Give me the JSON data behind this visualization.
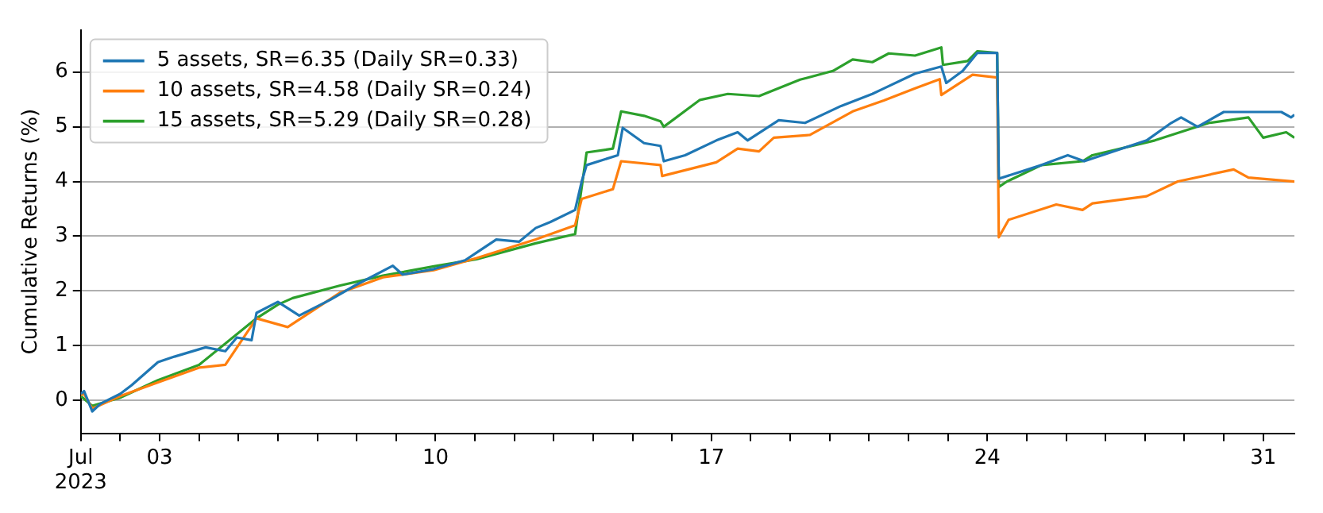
{
  "chart_data": {
    "type": "line",
    "ylabel": "Cumulative Returns (%)",
    "xlim": [
      "2023-07-01",
      "2023-07-31T19:00"
    ],
    "ylim": [
      -0.6,
      6.77
    ],
    "yticks": [
      0,
      1,
      2,
      3,
      4,
      5,
      6
    ],
    "xticks": [
      {
        "value": "2023-07-01",
        "label": "Jul\n2023"
      },
      {
        "value": "2023-07-02",
        "label": null
      },
      {
        "value": "2023-07-03",
        "label": "03"
      },
      {
        "value": "2023-07-04",
        "label": null
      },
      {
        "value": "2023-07-05",
        "label": null
      },
      {
        "value": "2023-07-06",
        "label": null
      },
      {
        "value": "2023-07-07",
        "label": null
      },
      {
        "value": "2023-07-08",
        "label": null
      },
      {
        "value": "2023-07-09",
        "label": null
      },
      {
        "value": "2023-07-10",
        "label": "10"
      },
      {
        "value": "2023-07-11",
        "label": null
      },
      {
        "value": "2023-07-12",
        "label": null
      },
      {
        "value": "2023-07-13",
        "label": null
      },
      {
        "value": "2023-07-14",
        "label": null
      },
      {
        "value": "2023-07-15",
        "label": null
      },
      {
        "value": "2023-07-16",
        "label": null
      },
      {
        "value": "2023-07-17",
        "label": "17"
      },
      {
        "value": "2023-07-18",
        "label": null
      },
      {
        "value": "2023-07-19",
        "label": null
      },
      {
        "value": "2023-07-20",
        "label": null
      },
      {
        "value": "2023-07-21",
        "label": null
      },
      {
        "value": "2023-07-22",
        "label": null
      },
      {
        "value": "2023-07-23",
        "label": null
      },
      {
        "value": "2023-07-24",
        "label": "24"
      },
      {
        "value": "2023-07-25",
        "label": null
      },
      {
        "value": "2023-07-26",
        "label": null
      },
      {
        "value": "2023-07-27",
        "label": null
      },
      {
        "value": "2023-07-28",
        "label": null
      },
      {
        "value": "2023-07-29",
        "label": null
      },
      {
        "value": "2023-07-30",
        "label": null
      },
      {
        "value": "2023-07-31",
        "label": "31"
      }
    ],
    "grid": "y",
    "legend": "top left",
    "marker": "none",
    "line_style": "solid",
    "series": [
      {
        "name": "5 assets, SR=6.35 (Daily SR=0.33)",
        "color": "#1f77b4",
        "x": [
          "2023-07-01T00:00",
          "2023-07-01T02:00",
          "2023-07-01T07:00",
          "2023-07-01T12:00",
          "2023-07-02T00:00",
          "2023-07-02T07:00",
          "2023-07-02T23:00",
          "2023-07-03T09:00",
          "2023-07-04T04:00",
          "2023-07-04T16:00",
          "2023-07-04T23:00",
          "2023-07-05T08:00",
          "2023-07-05T11:00",
          "2023-07-06T00:00",
          "2023-07-06T13:00",
          "2023-07-07T08:00",
          "2023-07-07T23:00",
          "2023-07-08T22:00",
          "2023-07-09T04:00",
          "2023-07-09T23:00",
          "2023-07-10T18:00",
          "2023-07-11T01:00",
          "2023-07-11T13:00",
          "2023-07-12T03:00",
          "2023-07-12T13:00",
          "2023-07-12T22:00",
          "2023-07-13T13:00",
          "2023-07-13T17:00",
          "2023-07-13T20:00",
          "2023-07-14T15:00",
          "2023-07-14T18:00",
          "2023-07-15T07:00",
          "2023-07-15T17:00",
          "2023-07-15T19:00",
          "2023-07-16T08:00",
          "2023-07-17T03:00",
          "2023-07-17T16:00",
          "2023-07-17T22:00",
          "2023-07-18T17:00",
          "2023-07-19T09:00",
          "2023-07-20T07:00",
          "2023-07-21T02:00",
          "2023-07-21T09:00",
          "2023-07-22T04:00",
          "2023-07-22T20:00",
          "2023-07-22T23:00",
          "2023-07-23T09:00",
          "2023-07-23T18:00",
          "2023-07-24T06:00",
          "2023-07-24T07:00",
          "2023-07-25T09:00",
          "2023-07-26T01:00",
          "2023-07-26T11:00",
          "2023-07-28T01:00",
          "2023-07-28T16:00",
          "2023-07-28T22:00",
          "2023-07-29T08:00",
          "2023-07-30T00:00",
          "2023-07-31T11:00",
          "2023-07-31T17:00",
          "2023-07-31T19:00"
        ],
        "values": [
          0.12,
          0.17,
          -0.2,
          -0.06,
          0.12,
          0.28,
          0.7,
          0.8,
          0.97,
          0.9,
          1.15,
          1.1,
          1.6,
          1.8,
          1.55,
          1.84,
          2.1,
          2.46,
          2.3,
          2.4,
          2.56,
          2.7,
          2.94,
          2.9,
          3.15,
          3.26,
          3.48,
          4.0,
          4.3,
          4.48,
          4.98,
          4.7,
          4.65,
          4.37,
          4.48,
          4.75,
          4.9,
          4.75,
          5.12,
          5.07,
          5.38,
          5.6,
          5.7,
          5.97,
          6.1,
          5.8,
          6.02,
          6.35,
          6.35,
          4.05,
          4.3,
          4.48,
          4.37,
          4.75,
          5.07,
          5.17,
          5.0,
          5.27,
          5.27,
          5.17,
          5.22
        ]
      },
      {
        "name": "10 assets, SR=4.58 (Daily SR=0.24)",
        "color": "#ff7f0e",
        "x": [
          "2023-07-01T00:00",
          "2023-07-01T02:00",
          "2023-07-01T07:00",
          "2023-07-02T00:00",
          "2023-07-02T23:00",
          "2023-07-04T00:00",
          "2023-07-04T16:00",
          "2023-07-05T11:00",
          "2023-07-06T06:00",
          "2023-07-07T14:00",
          "2023-07-08T16:00",
          "2023-07-09T23:00",
          "2023-07-11T01:00",
          "2023-07-12T13:00",
          "2023-07-13T13:00",
          "2023-07-13T17:00",
          "2023-07-14T12:00",
          "2023-07-14T17:00",
          "2023-07-15T17:00",
          "2023-07-15T18:00",
          "2023-07-17T03:00",
          "2023-07-17T16:00",
          "2023-07-18T05:00",
          "2023-07-18T14:00",
          "2023-07-19T12:00",
          "2023-07-20T14:00",
          "2023-07-21T09:00",
          "2023-07-22T04:00",
          "2023-07-22T19:00",
          "2023-07-22T20:00",
          "2023-07-23T15:00",
          "2023-07-24T06:00",
          "2023-07-24T07:00",
          "2023-07-24T13:00",
          "2023-07-25T18:00",
          "2023-07-26T10:00",
          "2023-07-26T16:00",
          "2023-07-28T01:00",
          "2023-07-28T20:00",
          "2023-07-30T06:00",
          "2023-07-30T15:00",
          "2023-07-31T19:00"
        ],
        "values": [
          0.1,
          0.12,
          -0.15,
          0.08,
          0.33,
          0.6,
          0.65,
          1.5,
          1.34,
          1.97,
          2.25,
          2.38,
          2.6,
          2.94,
          3.2,
          3.68,
          3.86,
          4.37,
          4.3,
          4.1,
          4.35,
          4.6,
          4.55,
          4.8,
          4.85,
          5.28,
          5.48,
          5.7,
          5.87,
          5.58,
          5.95,
          5.9,
          2.98,
          3.3,
          3.58,
          3.48,
          3.6,
          3.73,
          4.0,
          4.22,
          4.07,
          4.0
        ]
      },
      {
        "name": "15 assets, SR=5.29 (Daily SR=0.28)",
        "color": "#2ca02c",
        "x": [
          "2023-07-01T00:00",
          "2023-07-01T07:00",
          "2023-07-02T00:00",
          "2023-07-02T23:00",
          "2023-07-04T00:00",
          "2023-07-05T11:00",
          "2023-07-06T00:00",
          "2023-07-06T09:00",
          "2023-07-07T14:00",
          "2023-07-08T16:00",
          "2023-07-09T23:00",
          "2023-07-11T01:00",
          "2023-07-12T13:00",
          "2023-07-13T13:00",
          "2023-07-13T20:00",
          "2023-07-14T12:00",
          "2023-07-14T17:00",
          "2023-07-15T07:00",
          "2023-07-15T17:00",
          "2023-07-15T19:00",
          "2023-07-16T17:00",
          "2023-07-17T10:00",
          "2023-07-18T05:00",
          "2023-07-19T06:00",
          "2023-07-20T02:00",
          "2023-07-20T14:00",
          "2023-07-21T02:00",
          "2023-07-21T12:00",
          "2023-07-22T04:00",
          "2023-07-22T20:00",
          "2023-07-22T21:00",
          "2023-07-23T12:00",
          "2023-07-23T18:00",
          "2023-07-24T06:00",
          "2023-07-24T07:00",
          "2023-07-24T12:00",
          "2023-07-25T09:00",
          "2023-07-26T10:00",
          "2023-07-26T16:00",
          "2023-07-28T06:00",
          "2023-07-29T15:00",
          "2023-07-30T15:00",
          "2023-07-31T00:00",
          "2023-07-31T14:00",
          "2023-07-31T19:00"
        ],
        "values": [
          0.08,
          -0.1,
          0.05,
          0.37,
          0.65,
          1.5,
          1.75,
          1.87,
          2.1,
          2.28,
          2.45,
          2.58,
          2.87,
          3.04,
          4.53,
          4.6,
          5.28,
          5.2,
          5.1,
          5.0,
          5.49,
          5.6,
          5.56,
          5.86,
          6.02,
          6.23,
          6.18,
          6.34,
          6.3,
          6.45,
          6.13,
          6.2,
          6.38,
          6.35,
          3.9,
          4.0,
          4.3,
          4.37,
          4.48,
          4.75,
          5.07,
          5.17,
          4.8,
          4.9,
          4.8
        ]
      }
    ]
  }
}
